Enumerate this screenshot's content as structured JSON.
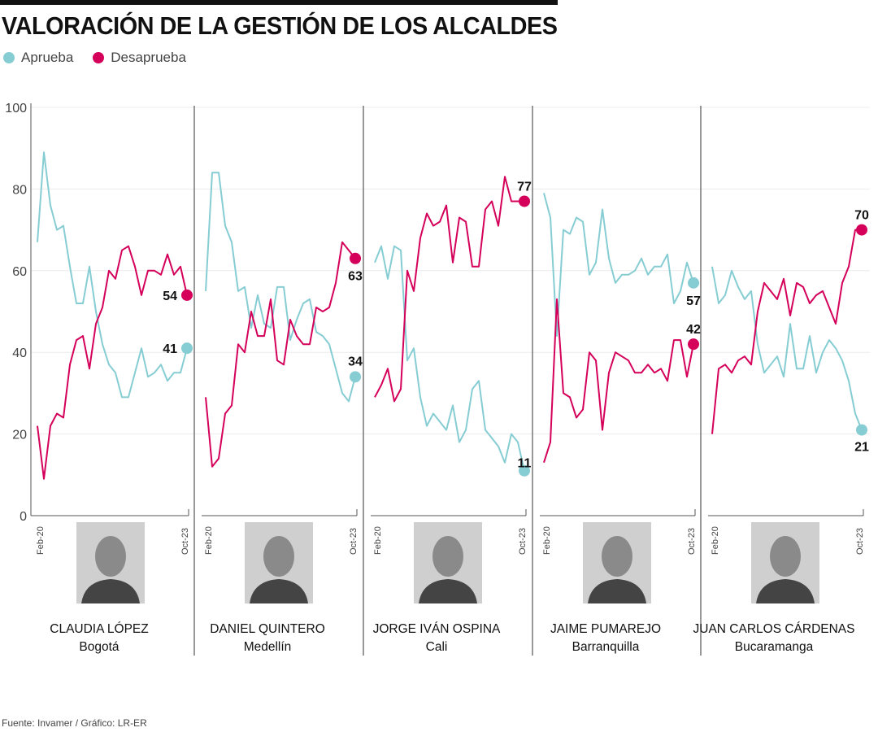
{
  "title": "VALORACIÓN DE LA GESTIÓN DE LOS ALCALDES",
  "source": "Fuente: Invamer / Gráfico: LR-ER",
  "colors": {
    "aprueba": "#86cdd3",
    "desaprueba": "#d4005a"
  },
  "chart_data": {
    "type": "line",
    "legend": [
      "Aprueba",
      "Desaprueba"
    ],
    "legend_position": "top-left",
    "ylim": [
      0,
      100
    ],
    "yticks": [
      0,
      20,
      40,
      60,
      80,
      100
    ],
    "grid": true,
    "x_start_label": "Feb-20",
    "x_end_label": "Oct-23",
    "panels": [
      {
        "name": "CLAUDIA LÓPEZ",
        "city": "Bogotá",
        "aprueba": [
          67,
          89,
          76,
          70,
          71,
          61,
          52,
          52,
          61,
          50,
          42,
          37,
          35,
          29,
          29,
          35,
          41,
          34,
          35,
          37,
          33,
          35,
          35,
          41
        ],
        "desaprueba": [
          22,
          9,
          22,
          25,
          24,
          37,
          43,
          44,
          36,
          47,
          51,
          60,
          58,
          65,
          66,
          61,
          54,
          60,
          60,
          59,
          64,
          59,
          61,
          54
        ],
        "label_aprueba": "41",
        "label_desaprueba": "54"
      },
      {
        "name": "DANIEL QUINTERO",
        "city": "Medellín",
        "aprueba": [
          55,
          84,
          84,
          71,
          67,
          55,
          56,
          46,
          54,
          47,
          46,
          56,
          56,
          43,
          48,
          52,
          53,
          45,
          44,
          42,
          36,
          30,
          28,
          34
        ],
        "desaprueba": [
          29,
          12,
          14,
          25,
          27,
          42,
          40,
          50,
          44,
          44,
          53,
          38,
          37,
          48,
          44,
          42,
          42,
          51,
          50,
          51,
          57,
          67,
          65,
          63
        ],
        "label_aprueba": "34",
        "label_desaprueba": "63"
      },
      {
        "name": "JORGE IVÁN OSPINA",
        "city": "Cali",
        "aprueba": [
          62,
          66,
          58,
          66,
          65,
          38,
          41,
          29,
          22,
          25,
          23,
          21,
          27,
          18,
          21,
          31,
          33,
          21,
          19,
          17,
          13,
          20,
          18,
          11
        ],
        "desaprueba": [
          29,
          32,
          36,
          28,
          31,
          60,
          55,
          68,
          74,
          71,
          72,
          76,
          62,
          73,
          72,
          61,
          61,
          75,
          77,
          71,
          83,
          77,
          77,
          77
        ],
        "label_aprueba": "11",
        "label_desaprueba": "77"
      },
      {
        "name": "JAIME PUMAREJO",
        "city": "Barranquilla",
        "aprueba": [
          79,
          73,
          44,
          70,
          69,
          73,
          72,
          59,
          62,
          75,
          63,
          57,
          59,
          59,
          60,
          63,
          59,
          61,
          61,
          64,
          52,
          55,
          62,
          57
        ],
        "desaprueba": [
          13,
          18,
          53,
          30,
          29,
          24,
          26,
          40,
          38,
          21,
          35,
          40,
          39,
          38,
          35,
          35,
          37,
          35,
          36,
          33,
          43,
          43,
          34,
          42
        ],
        "label_aprueba": "57",
        "label_desaprueba": "42"
      },
      {
        "name": "JUAN CARLOS CÁRDENAS",
        "city": "Bucaramanga",
        "aprueba": [
          61,
          52,
          54,
          60,
          56,
          53,
          55,
          42,
          35,
          37,
          39,
          34,
          47,
          36,
          36,
          44,
          35,
          40,
          43,
          41,
          38,
          33,
          25,
          21
        ],
        "desaprueba": [
          20,
          36,
          37,
          35,
          38,
          39,
          37,
          50,
          57,
          55,
          53,
          58,
          49,
          57,
          56,
          52,
          54,
          55,
          51,
          47,
          57,
          61,
          70,
          70
        ],
        "label_aprueba": "21",
        "label_desaprueba": "70"
      }
    ]
  }
}
